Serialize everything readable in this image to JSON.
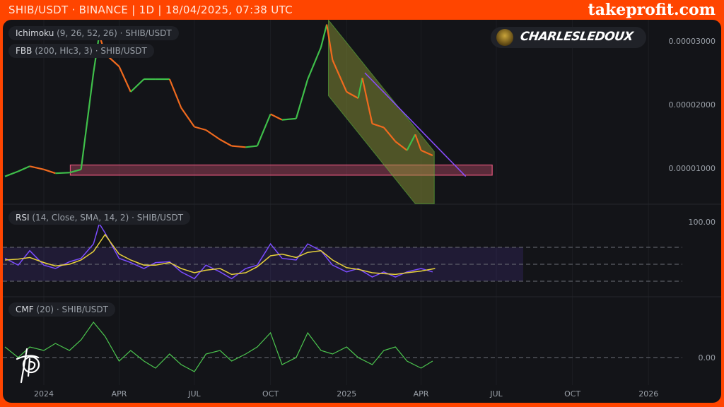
{
  "header": {
    "title": "SHIB/USDT · BINANCE | 1D | 18/04/2025, 07:38 UTC",
    "brand": "takeprofit.com"
  },
  "author": {
    "name": "CHARLESLEDOUX",
    "avatar_icon": "avatar-icon"
  },
  "legends": {
    "ichimoku": {
      "name": "Ichimoku",
      "params": "(9, 26, 52, 26) · SHIB/USDT"
    },
    "fbb": {
      "name": "FBB",
      "params": "(200, Hlc3, 3) · SHIB/USDT"
    },
    "rsi": {
      "name": "RSI",
      "params": "(14, Close, SMA, 14, 2) · SHIB/USDT"
    },
    "cmf": {
      "name": "CMF",
      "params": "(20) · SHIB/USDT"
    }
  },
  "colors": {
    "frame": "#ff4500",
    "background": "#131418",
    "up": "#3fbf4a",
    "down": "#f06a1e",
    "rsi": "#7b4dff",
    "rsi_ma": "#e8d23a",
    "cmf": "#4cc74f",
    "zone": "#e0557a",
    "channel": "#9aa23a",
    "trendline": "#8a4dff"
  },
  "chart_data": [
    {
      "type": "line",
      "pane": "price",
      "y_ticks": [
        "0.00003000",
        "0.00002000",
        "0.00001000"
      ],
      "y_tick_values": [
        3e-05,
        2e-05,
        1e-05
      ],
      "x_ticks": [
        "2024",
        "APR",
        "JUL",
        "OCT",
        "2025",
        "APR",
        "JUL",
        "OCT",
        "2026"
      ],
      "x_tick_dates": [
        "2024-01-01",
        "2024-04-01",
        "2024-07-01",
        "2024-10-01",
        "2025-01-01",
        "2025-04-01",
        "2025-07-01",
        "2025-10-01",
        "2026-01-01"
      ],
      "grid": true,
      "series": [
        {
          "points": [
            [
              "2023-11-15",
              8.7e-06
            ],
            [
              "2023-12-01",
              9.5e-06
            ],
            [
              "2023-12-15",
              1.03e-05
            ],
            [
              "2024-01-01",
              9.8e-06
            ],
            [
              "2024-01-15",
              9.2e-06
            ],
            [
              "2024-02-01",
              9.3e-06
            ],
            [
              "2024-02-15",
              9.8e-06
            ],
            [
              "2024-03-01",
              2.5e-05
            ],
            [
              "2024-03-08",
              3.1e-05
            ],
            [
              "2024-03-15",
              2.8e-05
            ],
            [
              "2024-04-01",
              2.6e-05
            ],
            [
              "2024-04-15",
              2.2e-05
            ],
            [
              "2024-05-01",
              2.4e-05
            ],
            [
              "2024-05-15",
              2.4e-05
            ],
            [
              "2024-06-01",
              2.4e-05
            ],
            [
              "2024-06-15",
              1.95e-05
            ],
            [
              "2024-07-01",
              1.65e-05
            ],
            [
              "2024-07-15",
              1.6e-05
            ],
            [
              "2024-08-01",
              1.45e-05
            ],
            [
              "2024-08-15",
              1.35e-05
            ],
            [
              "2024-09-01",
              1.33e-05
            ],
            [
              "2024-09-15",
              1.35e-05
            ],
            [
              "2024-10-01",
              1.85e-05
            ],
            [
              "2024-10-15",
              1.76e-05
            ],
            [
              "2024-11-01",
              1.78e-05
            ],
            [
              "2024-11-15",
              2.4e-05
            ],
            [
              "2024-12-01",
              2.9e-05
            ],
            [
              "2024-12-08",
              3.26e-05
            ],
            [
              "2024-12-15",
              2.7e-05
            ],
            [
              "2025-01-01",
              2.2e-05
            ],
            [
              "2025-01-15",
              2.1e-05
            ],
            [
              "2025-01-20",
              2.42e-05
            ],
            [
              "2025-02-01",
              1.7e-05
            ],
            [
              "2025-02-15",
              1.64e-05
            ],
            [
              "2025-03-01",
              1.42e-05
            ],
            [
              "2025-03-15",
              1.28e-05
            ],
            [
              "2025-03-25",
              1.53e-05
            ],
            [
              "2025-04-01",
              1.28e-05
            ],
            [
              "2025-04-15",
              1.2e-05
            ]
          ]
        }
      ],
      "drawings": {
        "support_zone": {
          "from": "2024-02-02",
          "to": "2025-06-26",
          "top": 1.05e-05,
          "bottom": 8.9e-06
        },
        "channel": [
          [
            "2024-12-10",
            3.33e-05
          ],
          [
            "2025-04-17",
            1.26e-05
          ],
          [
            "2025-04-17",
            4.4e-06
          ],
          [
            "2025-03-25",
            4.4e-06
          ],
          [
            "2024-12-10",
            2.14e-05
          ]
        ],
        "trendline": [
          [
            "2025-01-23",
            2.5e-05
          ],
          [
            "2025-05-25",
            8.7e-06
          ]
        ]
      }
    },
    {
      "type": "line",
      "pane": "rsi",
      "y_ticks": [
        "100.00"
      ],
      "levels": [
        70,
        50,
        30
      ],
      "ylim": [
        0,
        100
      ],
      "series": [
        {
          "points": [
            [
              "2023-11-15",
              57
            ],
            [
              "2023-12-01",
              49
            ],
            [
              "2023-12-15",
              66
            ],
            [
              "2024-01-01",
              49
            ],
            [
              "2024-01-15",
              45
            ],
            [
              "2024-02-01",
              53
            ],
            [
              "2024-02-15",
              57
            ],
            [
              "2024-03-01",
              74
            ],
            [
              "2024-03-08",
              98
            ],
            [
              "2024-03-15",
              87
            ],
            [
              "2024-04-01",
              57
            ],
            [
              "2024-04-15",
              52
            ],
            [
              "2024-05-01",
              45
            ],
            [
              "2024-05-15",
              52
            ],
            [
              "2024-06-01",
              53
            ],
            [
              "2024-06-15",
              41
            ],
            [
              "2024-07-01",
              33
            ],
            [
              "2024-07-15",
              49
            ],
            [
              "2024-08-01",
              41
            ],
            [
              "2024-08-15",
              33
            ],
            [
              "2024-09-01",
              45
            ],
            [
              "2024-09-15",
              49
            ],
            [
              "2024-10-01",
              74
            ],
            [
              "2024-10-15",
              57
            ],
            [
              "2024-11-01",
              55
            ],
            [
              "2024-11-15",
              74
            ],
            [
              "2024-12-01",
              66
            ],
            [
              "2024-12-15",
              49
            ],
            [
              "2025-01-01",
              41
            ],
            [
              "2025-01-15",
              45
            ],
            [
              "2025-02-01",
              35
            ],
            [
              "2025-02-15",
              41
            ],
            [
              "2025-03-01",
              35
            ],
            [
              "2025-03-15",
              41
            ],
            [
              "2025-04-01",
              45
            ],
            [
              "2025-04-15",
              41
            ]
          ]
        },
        {
          "points": [
            [
              "2023-11-15",
              55
            ],
            [
              "2023-12-01",
              56
            ],
            [
              "2023-12-15",
              58
            ],
            [
              "2024-01-01",
              52
            ],
            [
              "2024-01-15",
              48
            ],
            [
              "2024-02-01",
              50
            ],
            [
              "2024-02-15",
              55
            ],
            [
              "2024-03-01",
              65
            ],
            [
              "2024-03-15",
              85
            ],
            [
              "2024-04-01",
              62
            ],
            [
              "2024-04-15",
              55
            ],
            [
              "2024-05-01",
              49
            ],
            [
              "2024-05-15",
              49
            ],
            [
              "2024-06-01",
              52
            ],
            [
              "2024-06-15",
              45
            ],
            [
              "2024-07-01",
              40
            ],
            [
              "2024-07-15",
              43
            ],
            [
              "2024-08-01",
              45
            ],
            [
              "2024-08-15",
              38
            ],
            [
              "2024-09-01",
              40
            ],
            [
              "2024-09-15",
              47
            ],
            [
              "2024-10-01",
              60
            ],
            [
              "2024-10-15",
              62
            ],
            [
              "2024-11-01",
              58
            ],
            [
              "2024-11-15",
              64
            ],
            [
              "2024-12-01",
              66
            ],
            [
              "2024-12-15",
              55
            ],
            [
              "2025-01-01",
              46
            ],
            [
              "2025-01-15",
              44
            ],
            [
              "2025-02-01",
              40
            ],
            [
              "2025-02-15",
              39
            ],
            [
              "2025-03-01",
              38
            ],
            [
              "2025-03-15",
              40
            ],
            [
              "2025-04-01",
              42
            ],
            [
              "2025-04-18",
              45
            ]
          ]
        }
      ]
    },
    {
      "type": "line",
      "pane": "cmf",
      "y_ticks": [
        "0.00"
      ],
      "levels": [
        0
      ],
      "series": [
        {
          "points": [
            [
              "2023-11-15",
              0.06
            ],
            [
              "2023-12-01",
              0
            ],
            [
              "2023-12-15",
              0.06
            ],
            [
              "2024-01-01",
              0.04
            ],
            [
              "2024-01-15",
              0.08
            ],
            [
              "2024-02-01",
              0.04
            ],
            [
              "2024-02-15",
              0.1
            ],
            [
              "2024-03-01",
              0.2
            ],
            [
              "2024-03-15",
              0.12
            ],
            [
              "2024-04-01",
              -0.02
            ],
            [
              "2024-04-15",
              0.04
            ],
            [
              "2024-05-01",
              -0.02
            ],
            [
              "2024-05-15",
              -0.06
            ],
            [
              "2024-06-01",
              0.02
            ],
            [
              "2024-06-15",
              -0.04
            ],
            [
              "2024-07-01",
              -0.08
            ],
            [
              "2024-07-15",
              0.02
            ],
            [
              "2024-08-01",
              0.04
            ],
            [
              "2024-08-15",
              -0.02
            ],
            [
              "2024-09-01",
              0.02
            ],
            [
              "2024-09-15",
              0.06
            ],
            [
              "2024-10-01",
              0.14
            ],
            [
              "2024-10-15",
              -0.04
            ],
            [
              "2024-11-01",
              0
            ],
            [
              "2024-11-15",
              0.14
            ],
            [
              "2024-12-01",
              0.04
            ],
            [
              "2024-12-15",
              0.02
            ],
            [
              "2025-01-01",
              0.06
            ],
            [
              "2025-01-15",
              0
            ],
            [
              "2025-02-01",
              -0.04
            ],
            [
              "2025-02-15",
              0.04
            ],
            [
              "2025-03-01",
              0.06
            ],
            [
              "2025-03-15",
              -0.02
            ],
            [
              "2025-04-01",
              -0.06
            ],
            [
              "2025-04-15",
              -0.02
            ]
          ]
        }
      ]
    }
  ]
}
